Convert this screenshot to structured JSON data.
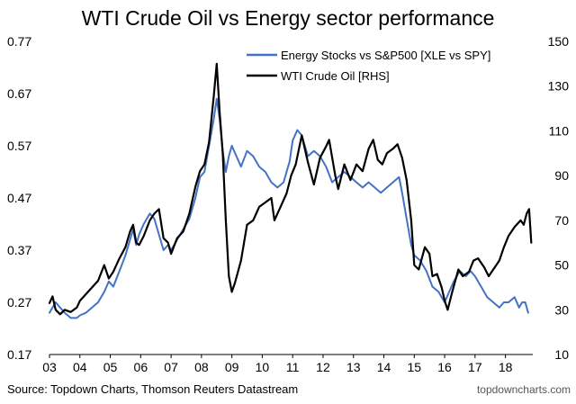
{
  "chart_data": {
    "type": "line",
    "title": "WTI Crude Oil vs Energy sector performance",
    "source": "Source: Topdown Charts, Thomson Reuters Datastream",
    "watermark": "topdowncharts.com",
    "x_ticks": [
      "03",
      "04",
      "05",
      "06",
      "07",
      "08",
      "09",
      "10",
      "11",
      "12",
      "13",
      "14",
      "15",
      "16",
      "17",
      "18"
    ],
    "x_range": [
      2003,
      2018.9
    ],
    "left_axis": {
      "ticks": [
        "0.17",
        "0.27",
        "0.37",
        "0.47",
        "0.57",
        "0.67",
        "0.77"
      ],
      "range": [
        0.17,
        0.77
      ]
    },
    "right_axis": {
      "ticks": [
        "10",
        "30",
        "50",
        "70",
        "90",
        "110",
        "130",
        "150"
      ],
      "range": [
        10,
        150
      ]
    },
    "legend_position": "top-right",
    "grid": false,
    "series": [
      {
        "name": "Energy Stocks vs S&P500 [XLE vs SPY]",
        "axis": "left",
        "color": "#4472C4",
        "points": [
          [
            2003.0,
            0.25
          ],
          [
            2003.1,
            0.26
          ],
          [
            2003.2,
            0.27
          ],
          [
            2003.35,
            0.26
          ],
          [
            2003.5,
            0.25
          ],
          [
            2003.7,
            0.24
          ],
          [
            2003.9,
            0.24
          ],
          [
            2004.0,
            0.245
          ],
          [
            2004.2,
            0.25
          ],
          [
            2004.4,
            0.26
          ],
          [
            2004.6,
            0.27
          ],
          [
            2004.8,
            0.29
          ],
          [
            2004.95,
            0.31
          ],
          [
            2005.1,
            0.3
          ],
          [
            2005.3,
            0.33
          ],
          [
            2005.5,
            0.36
          ],
          [
            2005.65,
            0.39
          ],
          [
            2005.75,
            0.41
          ],
          [
            2005.85,
            0.38
          ],
          [
            2005.95,
            0.4
          ],
          [
            2006.1,
            0.42
          ],
          [
            2006.3,
            0.44
          ],
          [
            2006.45,
            0.43
          ],
          [
            2006.6,
            0.4
          ],
          [
            2006.75,
            0.37
          ],
          [
            2006.9,
            0.38
          ],
          [
            2007.0,
            0.37
          ],
          [
            2007.2,
            0.39
          ],
          [
            2007.4,
            0.41
          ],
          [
            2007.6,
            0.43
          ],
          [
            2007.8,
            0.47
          ],
          [
            2007.95,
            0.51
          ],
          [
            2008.1,
            0.52
          ],
          [
            2008.25,
            0.57
          ],
          [
            2008.4,
            0.62
          ],
          [
            2008.5,
            0.66
          ],
          [
            2008.6,
            0.62
          ],
          [
            2008.7,
            0.56
          ],
          [
            2008.8,
            0.52
          ],
          [
            2008.9,
            0.55
          ],
          [
            2009.0,
            0.57
          ],
          [
            2009.15,
            0.55
          ],
          [
            2009.3,
            0.53
          ],
          [
            2009.5,
            0.56
          ],
          [
            2009.7,
            0.55
          ],
          [
            2009.9,
            0.53
          ],
          [
            2010.1,
            0.52
          ],
          [
            2010.3,
            0.5
          ],
          [
            2010.5,
            0.49
          ],
          [
            2010.7,
            0.5
          ],
          [
            2010.9,
            0.54
          ],
          [
            2011.0,
            0.58
          ],
          [
            2011.15,
            0.6
          ],
          [
            2011.3,
            0.59
          ],
          [
            2011.5,
            0.55
          ],
          [
            2011.7,
            0.56
          ],
          [
            2011.9,
            0.55
          ],
          [
            2012.1,
            0.53
          ],
          [
            2012.3,
            0.5
          ],
          [
            2012.5,
            0.51
          ],
          [
            2012.7,
            0.52
          ],
          [
            2012.9,
            0.51
          ],
          [
            2013.1,
            0.5
          ],
          [
            2013.3,
            0.49
          ],
          [
            2013.5,
            0.5
          ],
          [
            2013.7,
            0.49
          ],
          [
            2013.9,
            0.48
          ],
          [
            2014.1,
            0.49
          ],
          [
            2014.3,
            0.5
          ],
          [
            2014.5,
            0.51
          ],
          [
            2014.6,
            0.48
          ],
          [
            2014.75,
            0.43
          ],
          [
            2014.9,
            0.38
          ],
          [
            2015.0,
            0.36
          ],
          [
            2015.2,
            0.35
          ],
          [
            2015.4,
            0.33
          ],
          [
            2015.6,
            0.3
          ],
          [
            2015.8,
            0.29
          ],
          [
            2015.9,
            0.28
          ],
          [
            2016.0,
            0.27
          ],
          [
            2016.15,
            0.29
          ],
          [
            2016.3,
            0.31
          ],
          [
            2016.5,
            0.33
          ],
          [
            2016.7,
            0.32
          ],
          [
            2016.85,
            0.33
          ],
          [
            2017.0,
            0.32
          ],
          [
            2017.2,
            0.3
          ],
          [
            2017.4,
            0.28
          ],
          [
            2017.6,
            0.27
          ],
          [
            2017.8,
            0.26
          ],
          [
            2017.95,
            0.27
          ],
          [
            2018.1,
            0.27
          ],
          [
            2018.3,
            0.28
          ],
          [
            2018.45,
            0.26
          ],
          [
            2018.55,
            0.27
          ],
          [
            2018.65,
            0.27
          ],
          [
            2018.75,
            0.25
          ]
        ]
      },
      {
        "name": "WTI Crude Oil [RHS]",
        "axis": "right",
        "color": "#000000",
        "points": [
          [
            2003.0,
            33
          ],
          [
            2003.1,
            36
          ],
          [
            2003.2,
            30
          ],
          [
            2003.35,
            28
          ],
          [
            2003.5,
            30
          ],
          [
            2003.7,
            29
          ],
          [
            2003.9,
            31
          ],
          [
            2004.0,
            34
          ],
          [
            2004.2,
            37
          ],
          [
            2004.4,
            40
          ],
          [
            2004.6,
            43
          ],
          [
            2004.8,
            50
          ],
          [
            2004.95,
            44
          ],
          [
            2005.1,
            47
          ],
          [
            2005.3,
            53
          ],
          [
            2005.5,
            58
          ],
          [
            2005.65,
            65
          ],
          [
            2005.75,
            68
          ],
          [
            2005.85,
            60
          ],
          [
            2005.95,
            59
          ],
          [
            2006.1,
            63
          ],
          [
            2006.3,
            70
          ],
          [
            2006.45,
            73
          ],
          [
            2006.6,
            75
          ],
          [
            2006.75,
            62
          ],
          [
            2006.9,
            60
          ],
          [
            2007.0,
            55
          ],
          [
            2007.2,
            62
          ],
          [
            2007.4,
            65
          ],
          [
            2007.6,
            73
          ],
          [
            2007.8,
            85
          ],
          [
            2007.95,
            92
          ],
          [
            2008.1,
            95
          ],
          [
            2008.25,
            105
          ],
          [
            2008.4,
            125
          ],
          [
            2008.5,
            140
          ],
          [
            2008.6,
            118
          ],
          [
            2008.7,
            100
          ],
          [
            2008.8,
            70
          ],
          [
            2008.9,
            45
          ],
          [
            2009.0,
            38
          ],
          [
            2009.1,
            42
          ],
          [
            2009.3,
            52
          ],
          [
            2009.5,
            68
          ],
          [
            2009.7,
            70
          ],
          [
            2009.9,
            76
          ],
          [
            2010.1,
            78
          ],
          [
            2010.3,
            80
          ],
          [
            2010.4,
            70
          ],
          [
            2010.6,
            76
          ],
          [
            2010.8,
            82
          ],
          [
            2010.95,
            90
          ],
          [
            2011.1,
            95
          ],
          [
            2011.3,
            108
          ],
          [
            2011.5,
            96
          ],
          [
            2011.7,
            86
          ],
          [
            2011.9,
            98
          ],
          [
            2012.1,
            103
          ],
          [
            2012.2,
            106
          ],
          [
            2012.4,
            90
          ],
          [
            2012.5,
            84
          ],
          [
            2012.7,
            95
          ],
          [
            2012.9,
            88
          ],
          [
            2013.1,
            95
          ],
          [
            2013.3,
            92
          ],
          [
            2013.5,
            102
          ],
          [
            2013.65,
            106
          ],
          [
            2013.8,
            97
          ],
          [
            2013.95,
            95
          ],
          [
            2014.1,
            100
          ],
          [
            2014.3,
            102
          ],
          [
            2014.45,
            104
          ],
          [
            2014.6,
            98
          ],
          [
            2014.75,
            88
          ],
          [
            2014.9,
            70
          ],
          [
            2015.0,
            50
          ],
          [
            2015.15,
            48
          ],
          [
            2015.35,
            58
          ],
          [
            2015.5,
            55
          ],
          [
            2015.6,
            45
          ],
          [
            2015.75,
            46
          ],
          [
            2015.9,
            40
          ],
          [
            2016.0,
            34
          ],
          [
            2016.1,
            30
          ],
          [
            2016.25,
            38
          ],
          [
            2016.45,
            48
          ],
          [
            2016.6,
            45
          ],
          [
            2016.8,
            47
          ],
          [
            2016.95,
            52
          ],
          [
            2017.1,
            53
          ],
          [
            2017.3,
            49
          ],
          [
            2017.45,
            45
          ],
          [
            2017.6,
            48
          ],
          [
            2017.8,
            52
          ],
          [
            2017.95,
            58
          ],
          [
            2018.1,
            63
          ],
          [
            2018.3,
            67
          ],
          [
            2018.5,
            70
          ],
          [
            2018.6,
            68
          ],
          [
            2018.7,
            73
          ],
          [
            2018.78,
            75
          ],
          [
            2018.85,
            60
          ]
        ]
      }
    ]
  }
}
